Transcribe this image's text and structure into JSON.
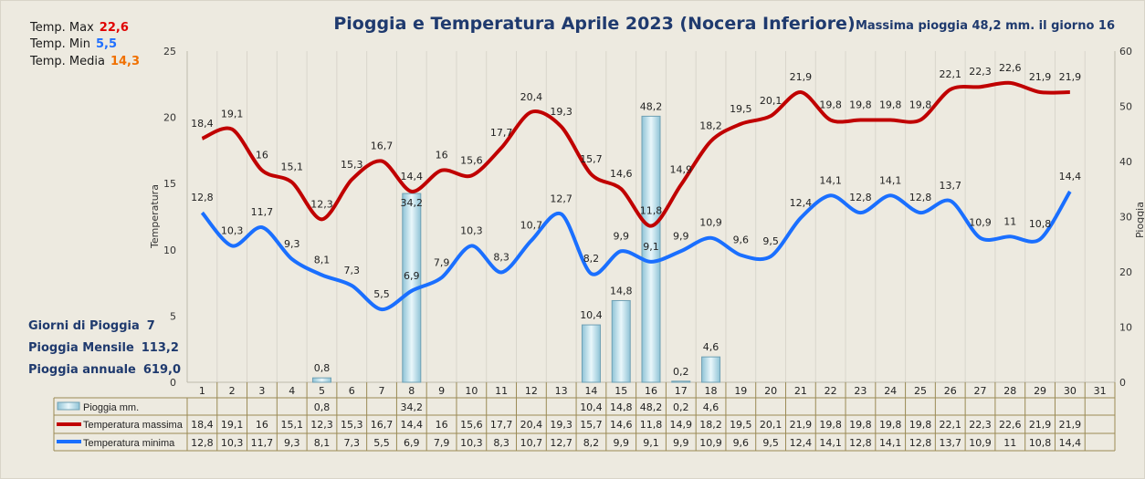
{
  "stats": {
    "tmax_label": "Temp. Max",
    "tmax_value": "22,6",
    "tmax_color": "#e00000",
    "tmin_label": "Temp.  Min",
    "tmin_value": "5,5",
    "tmin_color": "#1f6fff",
    "tmed_label": "Temp. Media",
    "tmed_value": "14,3",
    "tmed_color": "#f07000"
  },
  "summary": {
    "rain_days_label": "Giorni di Pioggia",
    "rain_days_value": "7",
    "monthly_label": "Pioggia Mensile",
    "monthly_value": "113,2",
    "annual_label": "Pioggia annuale",
    "annual_value": "619,0"
  },
  "max_rain_text": "Massima pioggia  48,2 mm. il giorno  16",
  "chart_data": {
    "type": "bar+line",
    "title": "Pioggia e Temperatura Aprile 2023 (Nocera Inferiore)",
    "ylabel": "Temperatura",
    "y2label": "Pioggia",
    "ylim": [
      0,
      25
    ],
    "yticks": [
      0,
      5,
      10,
      15,
      20,
      25
    ],
    "y2lim": [
      0,
      60
    ],
    "y2ticks": [
      0,
      10,
      20,
      30,
      40,
      50,
      60
    ],
    "categories": [
      "1",
      "2",
      "3",
      "4",
      "5",
      "6",
      "7",
      "8",
      "9",
      "10",
      "11",
      "12",
      "13",
      "14",
      "15",
      "16",
      "17",
      "18",
      "19",
      "20",
      "21",
      "22",
      "23",
      "24",
      "25",
      "26",
      "27",
      "28",
      "29",
      "30",
      "31"
    ],
    "series": [
      {
        "name": "Pioggia mm.",
        "type": "bar",
        "axis": "right",
        "color": "#bfe3ef",
        "values": [
          null,
          null,
          null,
          null,
          0.8,
          null,
          null,
          34.2,
          null,
          null,
          null,
          null,
          null,
          10.4,
          14.8,
          48.2,
          0.2,
          4.6,
          null,
          null,
          null,
          null,
          null,
          null,
          null,
          null,
          null,
          null,
          null,
          null,
          null
        ]
      },
      {
        "name": "Temperatura massima",
        "type": "line",
        "axis": "left",
        "color": "#c00000",
        "values": [
          18.4,
          19.1,
          16,
          15.1,
          12.3,
          15.3,
          16.7,
          14.4,
          16,
          15.6,
          17.7,
          20.4,
          19.3,
          15.7,
          14.6,
          11.8,
          14.9,
          18.2,
          19.5,
          20.1,
          21.9,
          19.8,
          19.8,
          19.8,
          19.8,
          22.1,
          22.3,
          22.6,
          21.9,
          21.9,
          null
        ]
      },
      {
        "name": "Temperatura minima",
        "type": "line",
        "axis": "left",
        "color": "#1a6fff",
        "values": [
          12.8,
          10.3,
          11.7,
          9.3,
          8.1,
          7.3,
          5.5,
          6.9,
          7.9,
          10.3,
          8.3,
          10.7,
          12.7,
          8.2,
          9.9,
          9.1,
          9.9,
          10.9,
          9.6,
          9.5,
          12.4,
          14.1,
          12.8,
          14.1,
          12.8,
          13.7,
          10.9,
          11.0,
          10.8,
          14.4,
          null
        ]
      }
    ],
    "grid": "vertical",
    "legend": "bottom-table"
  }
}
